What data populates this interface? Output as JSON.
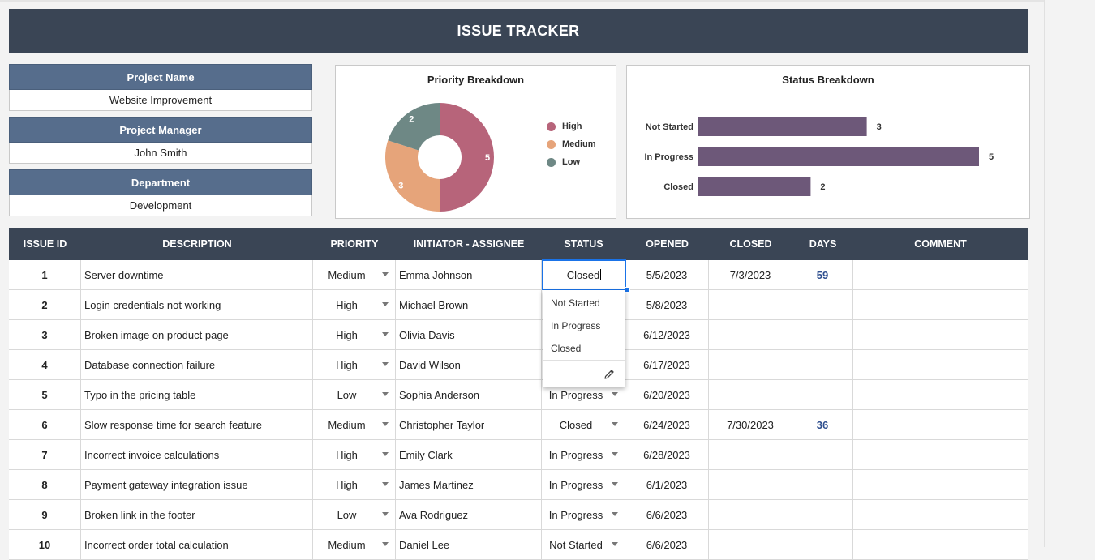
{
  "title": "ISSUE TRACKER",
  "info": [
    {
      "label": "Project Name",
      "value": "Website Improvement"
    },
    {
      "label": "Project Manager",
      "value": "John Smith"
    },
    {
      "label": "Department",
      "value": "Development"
    }
  ],
  "colors": {
    "high": "#b7647a",
    "medium": "#e6a47a",
    "low": "#6e8885",
    "status_bar": "#6d5879",
    "header": "#3a4555",
    "label": "#566d8c"
  },
  "charts": {
    "priority_title": "Priority Breakdown",
    "status_title": "Status Breakdown"
  },
  "chart_data": [
    {
      "type": "pie",
      "title": "Priority Breakdown",
      "categories": [
        "High",
        "Medium",
        "Low"
      ],
      "values": [
        5,
        3,
        2
      ],
      "legend": "right"
    },
    {
      "type": "bar",
      "orientation": "horizontal",
      "title": "Status Breakdown",
      "categories": [
        "Not Started",
        "In Progress",
        "Closed"
      ],
      "values": [
        3,
        5,
        2
      ]
    }
  ],
  "table": {
    "headers": [
      "ISSUE ID",
      "DESCRIPTION",
      "PRIORITY",
      "INITIATOR - ASSIGNEE",
      "STATUS",
      "OPENED",
      "CLOSED",
      "DAYS",
      "COMMENT"
    ],
    "rows": [
      {
        "id": "1",
        "desc": "Server downtime",
        "priority": "Medium",
        "assignee": "Emma Johnson",
        "status": "",
        "opened": "5/5/2023",
        "closed": "7/3/2023",
        "days": "59",
        "comment": ""
      },
      {
        "id": "2",
        "desc": "Login credentials not working",
        "priority": "High",
        "assignee": "Michael Brown",
        "status": "",
        "opened": "5/8/2023",
        "closed": "",
        "days": "",
        "comment": ""
      },
      {
        "id": "3",
        "desc": "Broken image on product page",
        "priority": "High",
        "assignee": "Olivia Davis",
        "status": "",
        "opened": "6/12/2023",
        "closed": "",
        "days": "",
        "comment": ""
      },
      {
        "id": "4",
        "desc": "Database connection failure",
        "priority": "High",
        "assignee": "David Wilson",
        "status": "",
        "opened": "6/17/2023",
        "closed": "",
        "days": "",
        "comment": ""
      },
      {
        "id": "5",
        "desc": "Typo in the pricing table",
        "priority": "Low",
        "assignee": "Sophia Anderson",
        "status": "In Progress",
        "opened": "6/20/2023",
        "closed": "",
        "days": "",
        "comment": ""
      },
      {
        "id": "6",
        "desc": "Slow response time for search feature",
        "priority": "Medium",
        "assignee": "Christopher Taylor",
        "status": "Closed",
        "opened": "6/24/2023",
        "closed": "7/30/2023",
        "days": "36",
        "comment": ""
      },
      {
        "id": "7",
        "desc": "Incorrect invoice calculations",
        "priority": "High",
        "assignee": "Emily Clark",
        "status": "In Progress",
        "opened": "6/28/2023",
        "closed": "",
        "days": "",
        "comment": ""
      },
      {
        "id": "8",
        "desc": "Payment gateway integration issue",
        "priority": "High",
        "assignee": "James Martinez",
        "status": "In Progress",
        "opened": "6/1/2023",
        "closed": "",
        "days": "",
        "comment": ""
      },
      {
        "id": "9",
        "desc": "Broken link in the footer",
        "priority": "Low",
        "assignee": "Ava Rodriguez",
        "status": "In Progress",
        "opened": "6/6/2023",
        "closed": "",
        "days": "",
        "comment": ""
      },
      {
        "id": "10",
        "desc": "Incorrect order total calculation",
        "priority": "Medium",
        "assignee": "Daniel Lee",
        "status": "Not Started",
        "opened": "6/6/2023",
        "closed": "",
        "days": "",
        "comment": ""
      }
    ]
  },
  "active_cell": {
    "value": "Closed"
  },
  "dropdown": {
    "options": [
      "Not Started",
      "In Progress",
      "Closed"
    ],
    "edit_icon": "pencil-icon"
  }
}
